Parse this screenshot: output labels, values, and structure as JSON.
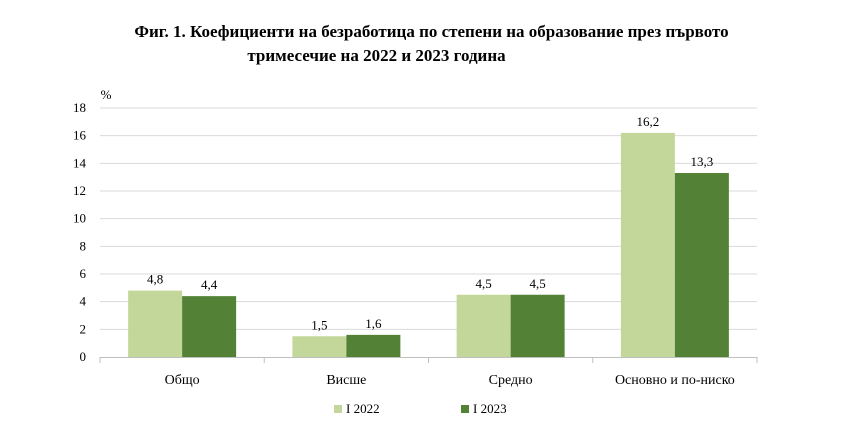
{
  "chart_data": {
    "type": "bar",
    "title_line1": "Фиг. 1. Коефициенти на безработица по степени на образование през първото",
    "title_line2": "тримесечие на 2022 и 2023 година",
    "ylabel": "%",
    "ylim": [
      0,
      18
    ],
    "yticks": [
      "0",
      "2",
      "4",
      "6",
      "8",
      "10",
      "12",
      "14",
      "16",
      "18"
    ],
    "categories": [
      "Общо",
      "Висше",
      "Средно",
      "Основно и по-ниско"
    ],
    "series": [
      {
        "name": "I 2022",
        "color": "#c4d79b",
        "values": [
          4.8,
          1.5,
          4.5,
          16.2
        ],
        "labels": [
          "4,8",
          "1,5",
          "4,5",
          "16,2"
        ]
      },
      {
        "name": "I 2023",
        "color": "#538135",
        "values": [
          4.4,
          1.6,
          4.5,
          13.3
        ],
        "labels": [
          "4,4",
          "1,6",
          "4,5",
          "13,3"
        ]
      }
    ],
    "grid": true,
    "legend": "bottom"
  }
}
